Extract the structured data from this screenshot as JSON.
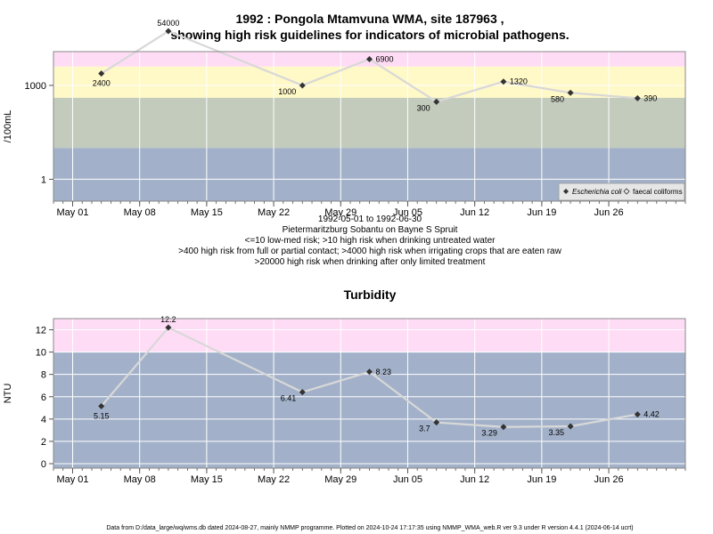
{
  "colors": {
    "band_red": "#ffb6c1",
    "band_pink": "#ffdcf5",
    "band_yellow": "#fff8c7",
    "band_green": "#c3cbbc",
    "band_blue": "#a2b1c9",
    "line": "#d8d8d8",
    "grid": "#ffffff",
    "marker": "#333333"
  },
  "chart_data": [
    {
      "type": "line",
      "title": "1992 : Pongola Mtamvuna WMA, site 187963 ,",
      "subtitle": "showing high risk guidelines for indicators of microbial pathogens.",
      "ylabel": "/100mL",
      "y_scale": "log",
      "ylim": [
        0.2,
        12000
      ],
      "y_ticks": [
        "1",
        "1000"
      ],
      "x_ticks": [
        "May 01",
        "May 08",
        "May 15",
        "May 22",
        "May 29",
        "Jun 05",
        "Jun 12",
        "Jun 19",
        "Jun 26"
      ],
      "xlim": [
        "1992-04-29",
        "1992-07-04"
      ],
      "notes": [
        "1992-05-01 to 1992-06-30",
        "Pietermaritzburg Sobantu on Bayne S Spruit",
        "<=10 low-med risk; >10 high risk when drinking untreated water",
        ">400 high risk from full or partial contact; >4000 high risk when irrigating crops that are eaten raw",
        ">20000 high risk when drinking after only limited treatment"
      ],
      "legend": {
        "position": "bottom-right",
        "entries": [
          {
            "name": "Escherichia coli",
            "marker": "filled diamond"
          },
          {
            "name": "faecal coliforms",
            "marker": "open diamond"
          }
        ]
      },
      "series": [
        {
          "name": "Escherichia coli",
          "x": [
            "1992-05-04",
            "1992-05-11",
            "1992-05-25",
            "1992-06-01",
            "1992-06-08",
            "1992-06-15",
            "1992-06-22",
            "1992-06-29"
          ],
          "values": [
            2400,
            54000,
            1000,
            6900,
            300,
            1320,
            580,
            390
          ],
          "labels": [
            "2400",
            "54000",
            "1000",
            "6900",
            "300",
            "1320",
            "580",
            "390"
          ]
        }
      ],
      "bands": [
        {
          "from": 20000,
          "to": 12000,
          "color": "band_red"
        },
        {
          "from": 4000,
          "to": 20000,
          "color": "band_pink"
        },
        {
          "from": 400,
          "to": 4000,
          "color": "band_yellow"
        },
        {
          "from": 10,
          "to": 400,
          "color": "band_green"
        },
        {
          "from": 0.2,
          "to": 10,
          "color": "band_blue"
        }
      ]
    },
    {
      "type": "line",
      "title": "Turbidity",
      "ylabel": "NTU",
      "ylim": [
        -0.4,
        13.0
      ],
      "y_ticks": [
        0,
        2,
        4,
        6,
        8,
        10,
        12
      ],
      "x_ticks": [
        "May 01",
        "May 08",
        "May 15",
        "May 22",
        "May 29",
        "Jun 05",
        "Jun 12",
        "Jun 19",
        "Jun 26"
      ],
      "xlim": [
        "1992-04-29",
        "1992-07-04"
      ],
      "series": [
        {
          "name": "Turbidity",
          "x": [
            "1992-05-04",
            "1992-05-11",
            "1992-05-25",
            "1992-06-01",
            "1992-06-08",
            "1992-06-15",
            "1992-06-22",
            "1992-06-29"
          ],
          "values": [
            5.15,
            12.2,
            6.41,
            8.23,
            3.7,
            3.29,
            3.35,
            4.42
          ],
          "labels": [
            "5.15",
            "12.2",
            "6.41",
            "8.23",
            "3.7",
            "3.29",
            "3.35",
            "4.42"
          ]
        }
      ],
      "bands": [
        {
          "from": 10,
          "to": 13.0,
          "color": "band_pink"
        },
        {
          "from": -0.4,
          "to": 10,
          "color": "band_blue"
        }
      ]
    }
  ],
  "footer": "Data from D:/data_large/wq/wms.db dated 2024-08-27, mainly NMMP programme. Plotted on 2024-10-24 17:17:35 using NMMP_WMA_web.R ver 9.3 under R version 4.4.1 (2024-06-14 ucrt)"
}
